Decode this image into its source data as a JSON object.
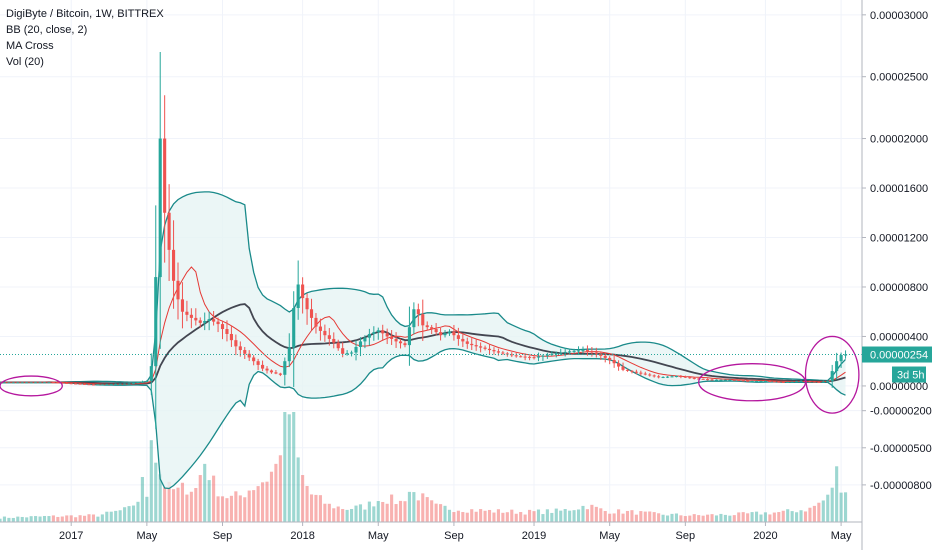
{
  "legend": {
    "title": "DigiByte / Bitcoin, 1W, BITTREX",
    "indicators": [
      "BB (20, close, 2)",
      "MA Cross",
      "Vol (20)"
    ]
  },
  "price_badge": {
    "value": "0.00000254",
    "countdown": "3d 5h"
  },
  "colors": {
    "up": "#26a69a",
    "down": "#ef5350",
    "bb": "#1a8a8a",
    "bb_fill": "#e6f4f4",
    "ma_fast": "#e53935",
    "ma_slow": "#434651",
    "annotation": "#b5179e",
    "last_price": "#26a69a"
  },
  "chart_data": {
    "type": "candlestick",
    "title": "DigiByte / Bitcoin, 1W, BITTREX",
    "ylim": [
      -1.1e-05,
      3.12e-05
    ],
    "y_ticks": [
      {
        "label": "0.00003000",
        "value": 3e-05
      },
      {
        "label": "0.00002500",
        "value": 2.5e-05
      },
      {
        "label": "0.00002000",
        "value": 2e-05
      },
      {
        "label": "0.00001600",
        "value": 1.6e-05
      },
      {
        "label": "0.00001200",
        "value": 1.2e-05
      },
      {
        "label": "0.00000800",
        "value": 8e-06
      },
      {
        "label": "0.00000400",
        "value": 4e-06
      },
      {
        "label": "0.00000254",
        "value": 2.54e-06
      },
      {
        "label": "0.00000000",
        "value": 0
      },
      {
        "label": "-0.00000200",
        "value": -2e-06
      },
      {
        "label": "-0.00000500",
        "value": -5e-06
      },
      {
        "label": "-0.00000800",
        "value": -8e-06
      }
    ],
    "x_ticks": [
      {
        "label": "2017",
        "week": 0
      },
      {
        "label": "May",
        "week": 17
      },
      {
        "label": "Sep",
        "week": 34
      },
      {
        "label": "2018",
        "week": 52
      },
      {
        "label": "May",
        "week": 69
      },
      {
        "label": "Sep",
        "week": 86
      },
      {
        "label": "2019",
        "week": 104
      },
      {
        "label": "May",
        "week": 121
      },
      {
        "label": "Sep",
        "week": 138
      },
      {
        "label": "2020",
        "week": 156
      },
      {
        "label": "May",
        "week": 173
      }
    ],
    "x_range": [
      -16,
      175
    ],
    "key_closes": [
      [
        -16,
        2.8e-07
      ],
      [
        -5,
        3e-07
      ],
      [
        5,
        1e-07
      ],
      [
        13,
        2e-07
      ],
      [
        17,
        4e-07
      ],
      [
        18,
        1.6e-06
      ],
      [
        19,
        8.8e-06
      ],
      [
        20,
        2e-05
      ],
      [
        21,
        1.4e-05
      ],
      [
        22,
        1.1e-05
      ],
      [
        23,
        8.5e-06
      ],
      [
        24,
        7e-06
      ],
      [
        25,
        6e-06
      ],
      [
        27,
        5.5e-06
      ],
      [
        29,
        5.1e-06
      ],
      [
        31,
        5.4e-06
      ],
      [
        33,
        5e-06
      ],
      [
        35,
        4.2e-06
      ],
      [
        37,
        3.2e-06
      ],
      [
        39,
        2.6e-06
      ],
      [
        41,
        2e-06
      ],
      [
        43,
        1.4e-06
      ],
      [
        45,
        1.1e-06
      ],
      [
        47,
        9e-07
      ],
      [
        49,
        3.1e-06
      ],
      [
        50,
        6.3e-06
      ],
      [
        51,
        8.2e-06
      ],
      [
        52,
        7.1e-06
      ],
      [
        53,
        6.2e-06
      ],
      [
        55,
        4.8e-06
      ],
      [
        57,
        4.1e-06
      ],
      [
        59,
        3.5e-06
      ],
      [
        61,
        2.6e-06
      ],
      [
        63,
        2.7e-06
      ],
      [
        65,
        3.6e-06
      ],
      [
        67,
        4.2e-06
      ],
      [
        69,
        4.5e-06
      ],
      [
        71,
        4e-06
      ],
      [
        73,
        3.6e-06
      ],
      [
        75,
        3.3e-06
      ],
      [
        77,
        6.2e-06
      ],
      [
        78,
        5.8e-06
      ],
      [
        79,
        4.9e-06
      ],
      [
        81,
        4.6e-06
      ],
      [
        83,
        4.1e-06
      ],
      [
        85,
        4.4e-06
      ],
      [
        87,
        3.8e-06
      ],
      [
        89,
        3.4e-06
      ],
      [
        91,
        3.2e-06
      ],
      [
        93,
        3e-06
      ],
      [
        96,
        2.7e-06
      ],
      [
        100,
        2.4e-06
      ],
      [
        104,
        2.3e-06
      ],
      [
        108,
        2.6e-06
      ],
      [
        112,
        2.8e-06
      ],
      [
        115,
        2.9e-06
      ],
      [
        118,
        2.6e-06
      ],
      [
        121,
        2.1e-06
      ],
      [
        124,
        1.3e-06
      ],
      [
        128,
        1e-06
      ],
      [
        132,
        7e-07
      ],
      [
        136,
        8e-07
      ],
      [
        140,
        6e-07
      ],
      [
        144,
        5e-07
      ],
      [
        148,
        5e-07
      ],
      [
        152,
        4e-07
      ],
      [
        156,
        4e-07
      ],
      [
        160,
        3e-07
      ],
      [
        164,
        4e-07
      ],
      [
        168,
        3e-07
      ],
      [
        170,
        4e-07
      ],
      [
        171,
        1.2e-06
      ],
      [
        172,
        2e-06
      ],
      [
        173,
        2.5e-06
      ],
      [
        174,
        2.54e-06
      ]
    ],
    "volume_ylim": [
      0,
      100
    ],
    "key_volumes": [
      [
        -16,
        4
      ],
      [
        -6,
        5
      ],
      [
        6,
        6
      ],
      [
        13,
        12
      ],
      [
        15,
        20
      ],
      [
        16,
        35
      ],
      [
        17,
        25
      ],
      [
        18,
        90
      ],
      [
        19,
        60
      ],
      [
        20,
        45
      ],
      [
        21,
        35
      ],
      [
        22,
        30
      ],
      [
        24,
        28
      ],
      [
        26,
        32
      ],
      [
        28,
        30
      ],
      [
        30,
        55
      ],
      [
        32,
        35
      ],
      [
        34,
        25
      ],
      [
        36,
        22
      ],
      [
        38,
        24
      ],
      [
        40,
        30
      ],
      [
        42,
        35
      ],
      [
        44,
        40
      ],
      [
        46,
        50
      ],
      [
        47,
        70
      ],
      [
        48,
        95
      ],
      [
        49,
        100
      ],
      [
        50,
        85
      ],
      [
        51,
        55
      ],
      [
        52,
        40
      ],
      [
        54,
        25
      ],
      [
        56,
        20
      ],
      [
        58,
        15
      ],
      [
        62,
        12
      ],
      [
        66,
        14
      ],
      [
        70,
        22
      ],
      [
        74,
        18
      ],
      [
        76,
        28
      ],
      [
        78,
        24
      ],
      [
        82,
        14
      ],
      [
        86,
        12
      ],
      [
        94,
        10
      ],
      [
        102,
        9
      ],
      [
        110,
        10
      ],
      [
        116,
        15
      ],
      [
        120,
        10
      ],
      [
        126,
        9
      ],
      [
        132,
        7
      ],
      [
        140,
        6
      ],
      [
        150,
        7
      ],
      [
        160,
        9
      ],
      [
        166,
        12
      ],
      [
        170,
        22
      ],
      [
        172,
        45
      ],
      [
        173,
        35
      ],
      [
        174,
        30
      ]
    ],
    "legend_entries": [
      "BB (20, close, 2)",
      "MA Cross",
      "Vol (20)"
    ],
    "last_price": 2.54e-06,
    "annotations": [
      {
        "type": "ellipse",
        "x_range": [
          -16,
          -2
        ],
        "y_range": [
          -8e-07,
          8e-07
        ]
      },
      {
        "type": "ellipse",
        "x_range": [
          141,
          165
        ],
        "y_range": [
          -1.2e-06,
          1.8e-06
        ]
      },
      {
        "type": "ellipse",
        "x_range": [
          165,
          177
        ],
        "y_range": [
          -2.2e-06,
          4e-06
        ]
      }
    ],
    "grid": true
  }
}
